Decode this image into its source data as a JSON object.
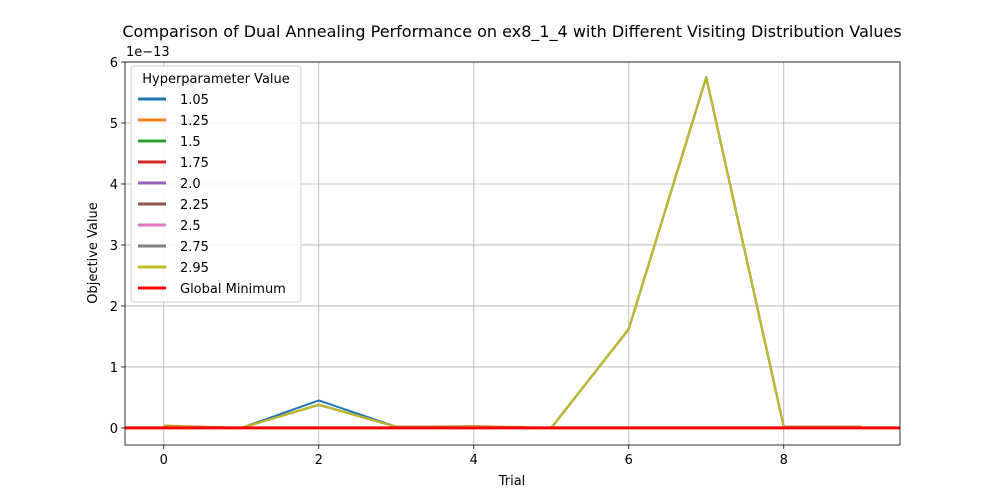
{
  "chart_data": {
    "type": "line",
    "title": "Comparison of Dual Annealing Performance on ex8_1_4 with Different Visiting Distribution Values",
    "xlabel": "Trial",
    "ylabel": "Objective Value",
    "y_offset_label": "1e−13",
    "xlim": [
      -0.5,
      9.5
    ],
    "ylim": [
      -0.28,
      6.0
    ],
    "x_ticks": [
      0,
      2,
      4,
      6,
      8
    ],
    "y_ticks": [
      0,
      1,
      2,
      3,
      4,
      5,
      6
    ],
    "grid": true,
    "legend_title": "Hyperparameter Value",
    "legend_position": "top-left",
    "x": [
      0,
      1,
      2,
      3,
      4,
      5,
      6,
      7,
      8,
      9
    ],
    "series": [
      {
        "name": "1.05",
        "color": "#1f77b4",
        "values": [
          0.02,
          0.0,
          0.45,
          0.02,
          0.02,
          0.0,
          1.62,
          5.75,
          0.02,
          0.02
        ]
      },
      {
        "name": "1.25",
        "color": "#ff7f0e",
        "values": [
          0.04,
          0.0,
          0.38,
          0.02,
          0.03,
          0.0,
          1.62,
          5.75,
          0.02,
          0.02
        ]
      },
      {
        "name": "1.5",
        "color": "#2ca02c",
        "values": [
          0.03,
          0.0,
          0.38,
          0.02,
          0.02,
          0.0,
          1.62,
          5.75,
          0.02,
          0.02
        ]
      },
      {
        "name": "1.75",
        "color": "#d62728",
        "values": [
          0.03,
          0.0,
          0.38,
          0.02,
          0.02,
          0.0,
          1.62,
          5.75,
          0.02,
          0.02
        ]
      },
      {
        "name": "2.0",
        "color": "#9467bd",
        "values": [
          0.03,
          0.0,
          0.38,
          0.02,
          0.02,
          0.0,
          1.62,
          5.75,
          0.02,
          0.02
        ]
      },
      {
        "name": "2.25",
        "color": "#8c564b",
        "values": [
          0.03,
          0.0,
          0.38,
          0.02,
          0.02,
          0.0,
          1.62,
          5.75,
          0.02,
          0.02
        ]
      },
      {
        "name": "2.5",
        "color": "#e377c2",
        "values": [
          0.03,
          0.0,
          0.38,
          0.02,
          0.02,
          0.0,
          1.62,
          5.75,
          0.02,
          0.02
        ]
      },
      {
        "name": "2.75",
        "color": "#7f7f7f",
        "values": [
          0.03,
          0.0,
          0.38,
          0.02,
          0.02,
          0.0,
          1.62,
          5.75,
          0.02,
          0.02
        ]
      },
      {
        "name": "2.95",
        "color": "#bcbd22",
        "values": [
          0.03,
          0.0,
          0.38,
          0.02,
          0.02,
          0.0,
          1.62,
          5.75,
          0.02,
          0.02
        ]
      }
    ],
    "reference_line": {
      "name": "Global Minimum",
      "color": "#ff0000",
      "y": 0
    }
  }
}
